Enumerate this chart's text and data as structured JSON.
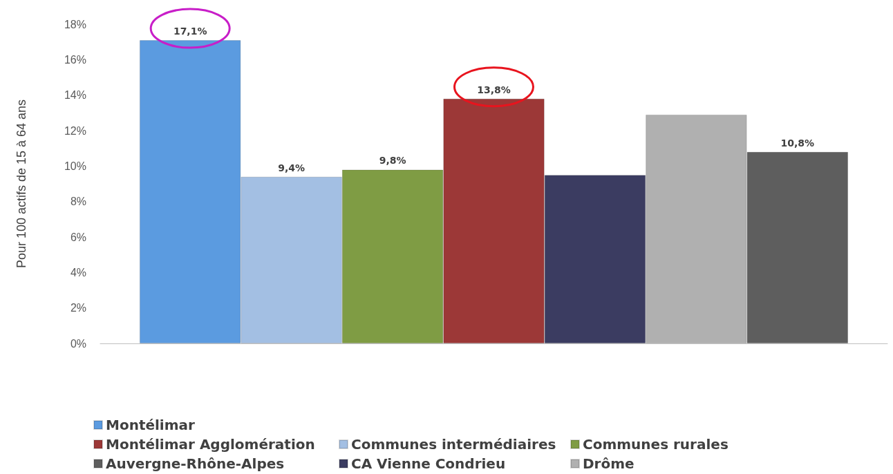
{
  "chart_data": {
    "type": "bar",
    "ylabel": "Pour 100 actifs de 15 à 64 ans",
    "categories": [
      null
    ],
    "series": [
      {
        "name": "Montélimar",
        "color": "#5b9be0",
        "values": [
          17.1
        ],
        "value_labels": [
          "17,1%"
        ]
      },
      {
        "name": "Communes intermédiaires",
        "color": "#a3bfe3",
        "values": [
          9.4
        ],
        "value_labels": [
          "9,4%"
        ]
      },
      {
        "name": "Communes rurales",
        "color": "#7f9c44",
        "values": [
          9.8
        ],
        "value_labels": [
          "9,8%"
        ]
      },
      {
        "name": "Montélimar Agglomération",
        "color": "#9c3837",
        "values": [
          13.8
        ],
        "value_labels": [
          "13,8%"
        ]
      },
      {
        "name": "CA Vienne Condrieu",
        "color": "#3b3c61",
        "values": [
          9.5
        ],
        "value_labels": [
          null
        ]
      },
      {
        "name": "Drôme",
        "color": "#b0b0b0",
        "values": [
          12.9
        ],
        "value_labels": [
          null
        ]
      },
      {
        "name": "Auvergne-Rhône-Alpes",
        "color": "#5e5e5e",
        "values": [
          10.8
        ],
        "value_labels": [
          "10,8%"
        ]
      }
    ],
    "ylim": [
      0,
      18
    ],
    "yticks": [
      {
        "value": 0,
        "label": "0%"
      },
      {
        "value": 2,
        "label": "2%"
      },
      {
        "value": 4,
        "label": "4%"
      },
      {
        "value": 6,
        "label": "6%"
      },
      {
        "value": 8,
        "label": "8%"
      },
      {
        "value": 10,
        "label": "10%"
      },
      {
        "value": 12,
        "label": "12%"
      },
      {
        "value": 14,
        "label": "14%"
      },
      {
        "value": 16,
        "label": "16%"
      },
      {
        "value": 18,
        "label": "18%"
      }
    ],
    "grid": false,
    "legend": "bottom"
  }
}
